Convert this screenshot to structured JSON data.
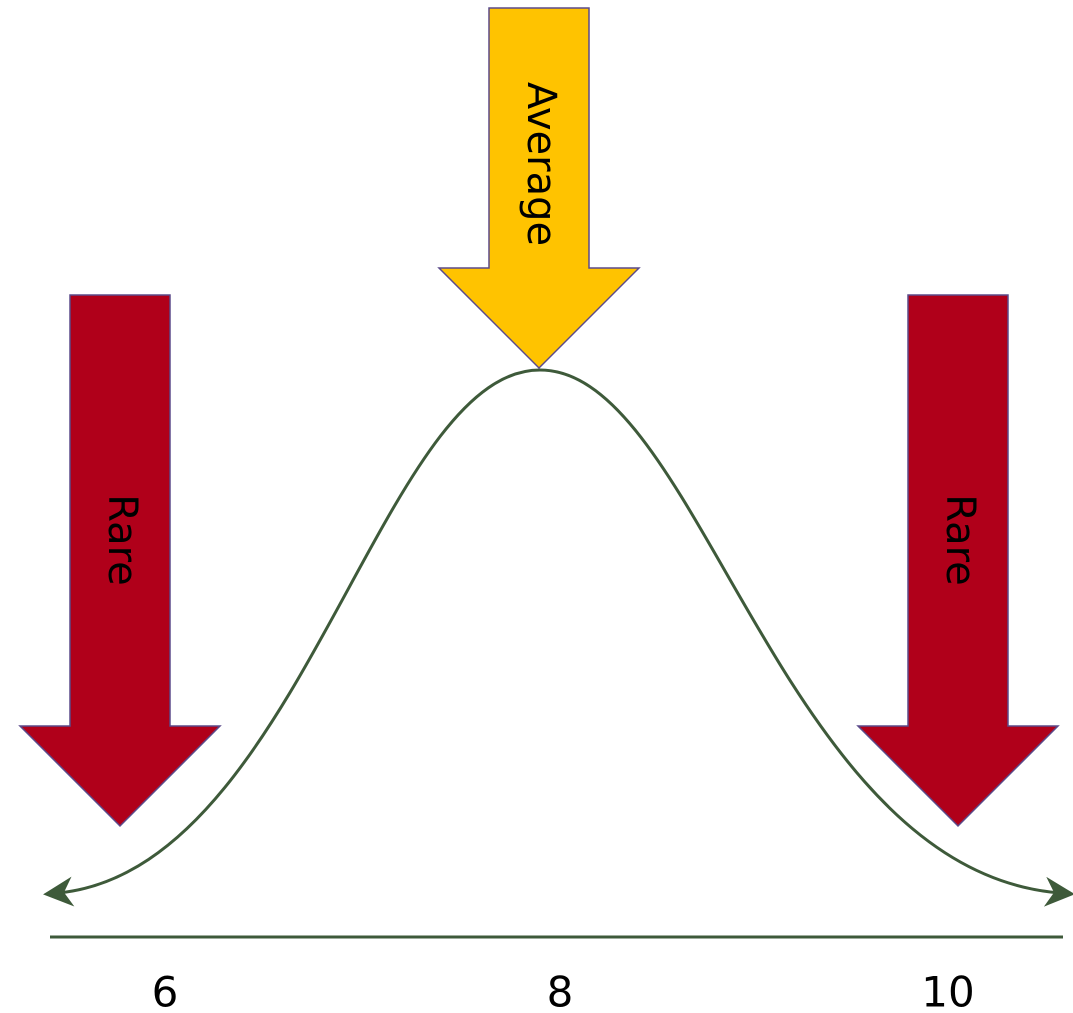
{
  "arrows": {
    "left": {
      "label": "Rare",
      "color": "#b0001a",
      "border": "#5b4a8a"
    },
    "center": {
      "label": "Average",
      "color": "#ffc300",
      "border": "#5b4a8a"
    },
    "right": {
      "label": "Rare",
      "color": "#b0001a",
      "border": "#5b4a8a"
    }
  },
  "curve": {
    "color": "#3e5a3a"
  },
  "axis": {
    "color": "#3e5a3a",
    "ticks": [
      "6",
      "8",
      "10"
    ]
  }
}
